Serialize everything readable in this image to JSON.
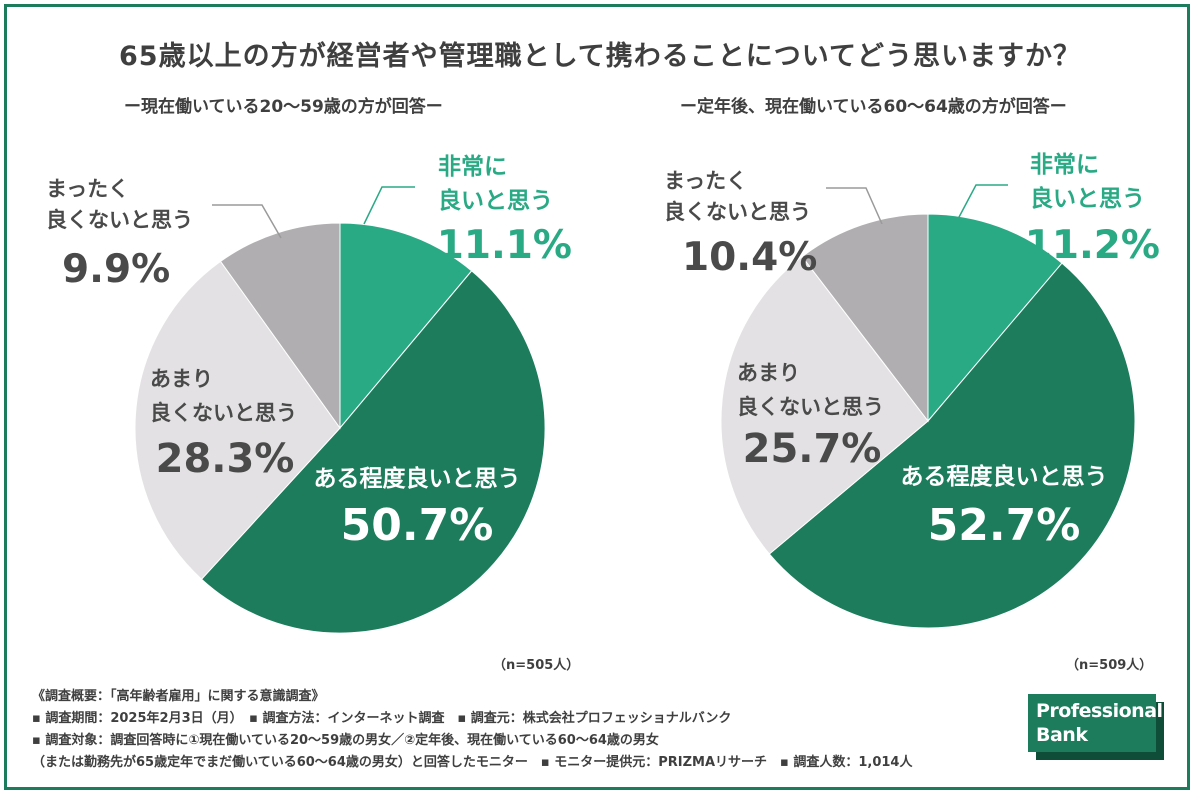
{
  "title": "65歳以上の方が経営者や管理職として携わることについてどう思いますか？",
  "colors": {
    "very_good": "#2aaa84",
    "somewhat_good": "#1c7c5c",
    "not_very_good": "#e3e1e3",
    "not_good_at_all": "#b0aeb0",
    "text_dark": "#4a4a4a",
    "text_green": "#2aaa84",
    "frame": "#1c7c5c"
  },
  "chart_data": [
    {
      "type": "pie",
      "title": "ー現在働いている20～59歳の方が回答ー",
      "n_label": "（n=505人）",
      "slices": [
        {
          "label_lines": [
            "非常に",
            "良いと思う"
          ],
          "value": 11.1,
          "value_label": "11.1%"
        },
        {
          "label_lines": [
            "ある程度良いと思う"
          ],
          "value": 50.7,
          "value_label": "50.7%"
        },
        {
          "label_lines": [
            "あまり",
            "良くないと思う"
          ],
          "value": 28.3,
          "value_label": "28.3%"
        },
        {
          "label_lines": [
            "まったく",
            "良くないと思う"
          ],
          "value": 9.9,
          "value_label": "9.9%"
        }
      ]
    },
    {
      "type": "pie",
      "title": "ー定年後、現在働いている60～64歳の方が回答ー",
      "n_label": "（n=509人）",
      "slices": [
        {
          "label_lines": [
            "非常に",
            "良いと思う"
          ],
          "value": 11.2,
          "value_label": "11.2%"
        },
        {
          "label_lines": [
            "ある程度良いと思う"
          ],
          "value": 52.7,
          "value_label": "52.7%"
        },
        {
          "label_lines": [
            "あまり",
            "良くないと思う"
          ],
          "value": 25.7,
          "value_label": "25.7%"
        },
        {
          "label_lines": [
            "まったく",
            "良くないと思う"
          ],
          "value": 10.4,
          "value_label": "10.4%"
        }
      ]
    }
  ],
  "footer": {
    "lines": [
      "《調査概要：「高年齢者雇用」に関する意識調査》",
      "▪ 調査期間：2025年2月3日（月）　▪ 調査方法：インターネット調査　▪ 調査元：株式会社プロフェッショナルバンク",
      "▪ 調査対象：調査回答時に①現在働いている20～59歳の男女／②定年後、現在働いている60～64歳の男女",
      "（または勤務先が65歳定年でまだ働いている60～64歳の男女）と回答したモニター　▪ モニター提供元：PRIZMAリサーチ　▪ 調査人数：1,014人"
    ]
  },
  "logo": {
    "line1": "Professional",
    "line2": "Bank"
  }
}
